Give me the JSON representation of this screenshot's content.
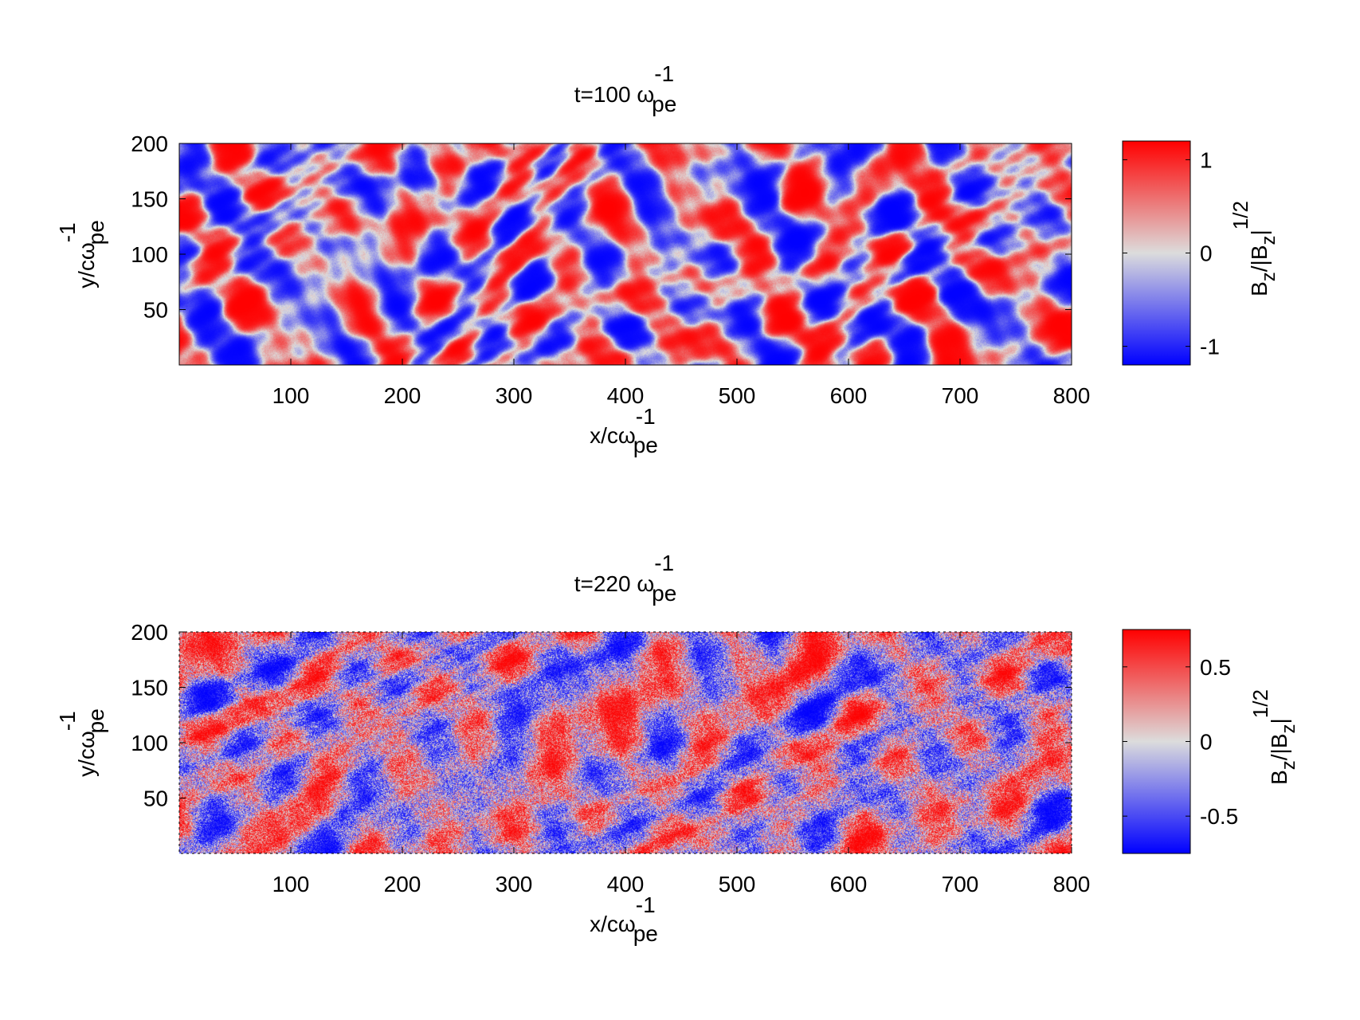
{
  "chart_data": [
    {
      "type": "heatmap",
      "title": {
        "base": "t=100 ω",
        "sup": "-1",
        "sub": "pe"
      },
      "xlabel": {
        "base": "x/cω",
        "sup": "-1",
        "sub": "pe"
      },
      "ylabel": {
        "base": "y/cω",
        "sup": "-1",
        "sub": "pe"
      },
      "colorbar_label": {
        "b1": "B",
        "z1": "z",
        "mid": "/|B",
        "z2": "z",
        "end": "|",
        "sup": "1/2"
      },
      "xlim": [
        0,
        800
      ],
      "ylim": [
        0,
        200
      ],
      "xticks": [
        100,
        200,
        300,
        400,
        500,
        600,
        700,
        800
      ],
      "yticks": [
        50,
        100,
        150,
        200
      ],
      "clim": [
        -1.2,
        1.2
      ],
      "cbar_ticks": [
        -1,
        0,
        1
      ],
      "cbar_tick_labels": [
        "-1",
        "0",
        "1"
      ],
      "colormap": [
        "#0000ff",
        "#dcdcdc",
        "#ff0000"
      ],
      "seed": 7,
      "roughness": "smooth"
    },
    {
      "type": "heatmap",
      "title": {
        "base": "t=220 ω",
        "sup": "-1",
        "sub": "pe"
      },
      "xlabel": {
        "base": "x/cω",
        "sup": "-1",
        "sub": "pe"
      },
      "ylabel": {
        "base": "y/cω",
        "sup": "-1",
        "sub": "pe"
      },
      "colorbar_label": {
        "b1": "B",
        "z1": "z",
        "mid": "/|B",
        "z2": "z",
        "end": "|",
        "sup": "1/2"
      },
      "xlim": [
        0,
        800
      ],
      "ylim": [
        0,
        200
      ],
      "xticks": [
        100,
        200,
        300,
        400,
        500,
        600,
        700,
        800
      ],
      "yticks": [
        50,
        100,
        150,
        200
      ],
      "clim": [
        -0.75,
        0.75
      ],
      "cbar_ticks": [
        -0.5,
        0,
        0.5
      ],
      "cbar_tick_labels": [
        "-0.5",
        "0",
        "0.5"
      ],
      "colormap": [
        "#0000ff",
        "#dcdcdc",
        "#ff0000"
      ],
      "seed": 19,
      "roughness": "noisy"
    }
  ]
}
